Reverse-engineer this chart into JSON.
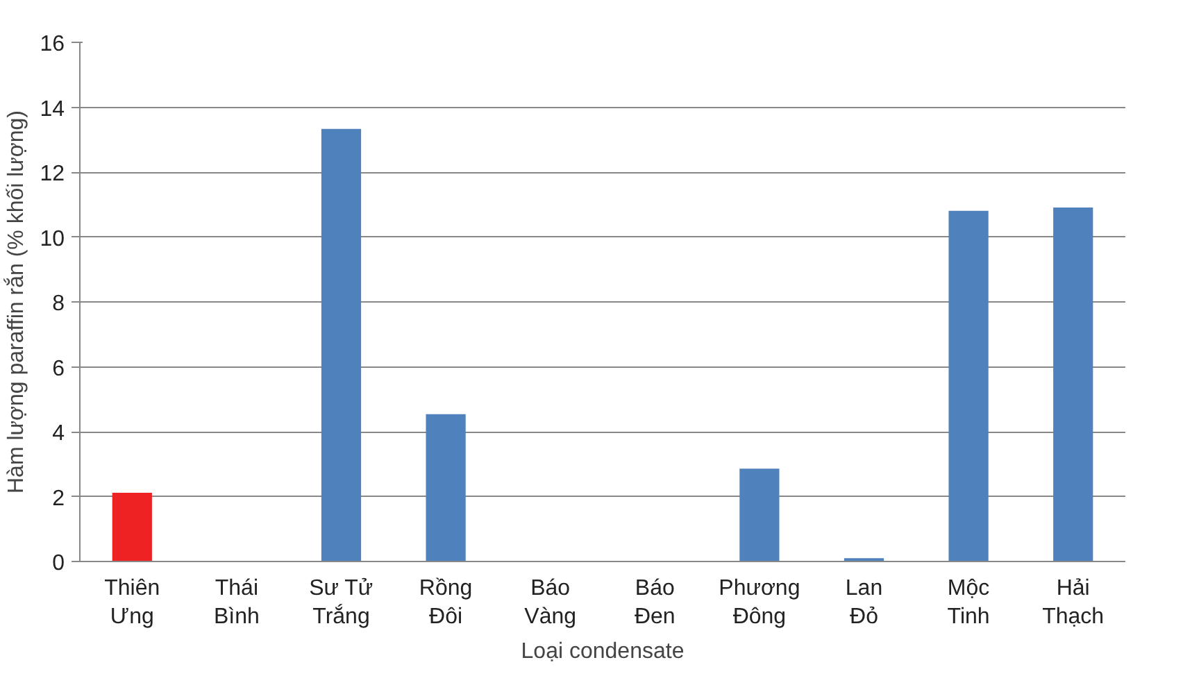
{
  "chart_data": {
    "type": "bar",
    "xlabel": "Loại condensate",
    "ylabel": "Hàm lượng paraffin rắn (% khối lượng)",
    "categories": [
      "Thiên\nƯng",
      "Thái\nBình",
      "Sư Tử\nTrắng",
      "Rồng\nĐôi",
      "Báo\nVàng",
      "Báo\nĐen",
      "Phương\nĐông",
      "Lan\nĐỏ",
      "Mộc\nTinh",
      "Hải\nThạch"
    ],
    "values": [
      2.12,
      0,
      13.33,
      4.54,
      0.02,
      0,
      2.86,
      0.1,
      10.81,
      10.91
    ],
    "colors": [
      "#ee2222",
      "#4f81bd",
      "#4f81bd",
      "#4f81bd",
      "#4f81bd",
      "#4f81bd",
      "#4f81bd",
      "#4f81bd",
      "#4f81bd",
      "#4f81bd"
    ],
    "ylim": [
      0,
      16
    ],
    "yticks": [
      0,
      2,
      4,
      6,
      8,
      10,
      12,
      14,
      16
    ],
    "grid": "y"
  }
}
